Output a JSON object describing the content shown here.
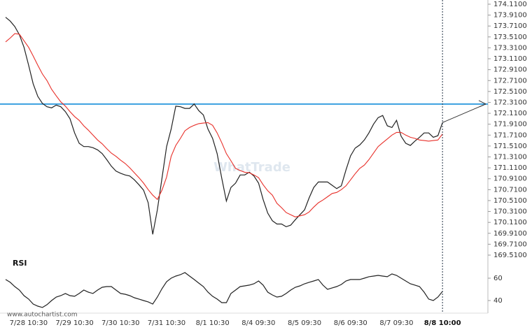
{
  "chart_data": [
    {
      "type": "line",
      "watermark": "WhatTrade",
      "categories": [
        null,
        null,
        null,
        null,
        null,
        "7/28 10:30",
        null,
        null,
        null,
        null,
        null,
        null,
        null,
        null,
        null,
        "7/29 10:30",
        null,
        null,
        null,
        null,
        null,
        null,
        null,
        null,
        null,
        "7/30 10:30",
        null,
        null,
        null,
        null,
        null,
        null,
        null,
        null,
        null,
        "7/31 10:30",
        null,
        null,
        null,
        null,
        null,
        null,
        null,
        null,
        null,
        "8/1 10:30",
        null,
        null,
        null,
        null,
        null,
        null,
        null,
        null,
        null,
        "8/4 09:30",
        null,
        null,
        null,
        null,
        null,
        null,
        null,
        null,
        null,
        "8/5 09:30",
        null,
        null,
        null,
        null,
        null,
        null,
        null,
        null,
        null,
        "8/6 09:30",
        null,
        null,
        null,
        null,
        null,
        null,
        null,
        null,
        null,
        "8/7 09:30",
        null,
        null,
        null,
        null,
        null,
        null,
        null,
        null,
        null,
        "8/8 10:00"
      ],
      "series": [
        {
          "color": "#222222",
          "values": [
            173.87,
            173.8,
            173.7,
            173.55,
            173.32,
            172.99,
            172.65,
            172.42,
            172.29,
            172.23,
            172.21,
            172.26,
            172.23,
            172.14,
            172.01,
            171.75,
            171.56,
            171.5,
            171.5,
            171.48,
            171.44,
            171.37,
            171.26,
            171.14,
            171.05,
            171.01,
            170.98,
            170.96,
            170.89,
            170.8,
            170.7,
            170.47,
            169.89,
            170.34,
            170.92,
            171.5,
            171.82,
            172.24,
            172.23,
            172.2,
            172.2,
            172.28,
            172.16,
            172.08,
            171.82,
            171.65,
            171.37,
            170.92,
            170.5,
            170.75,
            170.83,
            170.98,
            170.98,
            171.03,
            170.96,
            170.83,
            170.53,
            170.28,
            170.14,
            170.08,
            170.08,
            170.03,
            170.06,
            170.16,
            170.25,
            170.34,
            170.56,
            170.75,
            170.85,
            170.85,
            170.85,
            170.79,
            170.73,
            170.78,
            171.07,
            171.33,
            171.47,
            171.53,
            171.62,
            171.75,
            171.91,
            172.03,
            172.07,
            171.88,
            171.85,
            171.98,
            171.69,
            171.56,
            171.52,
            171.6,
            171.67,
            171.75,
            171.75,
            171.67,
            171.7,
            171.94
          ]
        },
        {
          "color": "#e8302a",
          "values": [
            173.42,
            173.49,
            173.57,
            173.56,
            173.44,
            173.32,
            173.16,
            172.99,
            172.83,
            172.71,
            172.55,
            172.43,
            172.32,
            172.24,
            172.14,
            172.05,
            171.98,
            171.88,
            171.8,
            171.71,
            171.62,
            171.55,
            171.46,
            171.38,
            171.32,
            171.25,
            171.19,
            171.11,
            171.02,
            170.93,
            170.83,
            170.71,
            170.61,
            170.53,
            170.7,
            170.94,
            171.32,
            171.52,
            171.65,
            171.79,
            171.85,
            171.89,
            171.92,
            171.93,
            171.94,
            171.89,
            171.75,
            171.57,
            171.37,
            171.24,
            171.1,
            171.06,
            171.03,
            171.02,
            170.98,
            170.93,
            170.8,
            170.69,
            170.61,
            170.46,
            170.38,
            170.29,
            170.25,
            170.21,
            170.23,
            170.25,
            170.3,
            170.39,
            170.47,
            170.52,
            170.58,
            170.64,
            170.66,
            170.71,
            170.78,
            170.89,
            171.0,
            171.1,
            171.16,
            171.26,
            171.38,
            171.5,
            171.57,
            171.64,
            171.71,
            171.76,
            171.76,
            171.71,
            171.67,
            171.65,
            171.62,
            171.61,
            171.6,
            171.61,
            171.62,
            171.73
          ]
        }
      ],
      "resistance": 172.28,
      "resistance_color": "#3aa0e0",
      "ylim": [
        169.51,
        174.11
      ],
      "yticks": [
        {
          "value": 174.11,
          "label": "174.1100"
        },
        {
          "value": 173.91,
          "label": "173.9100"
        },
        {
          "value": 173.71,
          "label": "173.7100"
        },
        {
          "value": 173.51,
          "label": "173.5100"
        },
        {
          "value": 173.31,
          "label": "173.3100"
        },
        {
          "value": 173.11,
          "label": "173.1100"
        },
        {
          "value": 172.91,
          "label": "172.9100"
        },
        {
          "value": 172.71,
          "label": "172.7100"
        },
        {
          "value": 172.51,
          "label": "172.5100"
        },
        {
          "value": 172.31,
          "label": "172.3100"
        },
        {
          "value": 172.11,
          "label": "172.1100"
        },
        {
          "value": 171.91,
          "label": "171.9100"
        },
        {
          "value": 171.71,
          "label": "171.7100"
        },
        {
          "value": 171.51,
          "label": "171.5100"
        },
        {
          "value": 171.31,
          "label": "171.3100"
        },
        {
          "value": 171.11,
          "label": "171.1100"
        },
        {
          "value": 170.91,
          "label": "170.9100"
        },
        {
          "value": 170.71,
          "label": "170.7100"
        },
        {
          "value": 170.51,
          "label": "170.5100"
        },
        {
          "value": 170.31,
          "label": "170.3100"
        },
        {
          "value": 170.11,
          "label": "170.1100"
        },
        {
          "value": 169.91,
          "label": "169.9100"
        },
        {
          "value": 169.71,
          "label": "169.7100"
        },
        {
          "value": 169.51,
          "label": "169.5100"
        }
      ]
    },
    {
      "type": "line",
      "title": "RSI",
      "source": "www.autochartist.com",
      "series": [
        {
          "color": "#222222",
          "values": [
            58.8,
            56.3,
            52.5,
            49.4,
            44.4,
            41.3,
            36.9,
            35.0,
            33.8,
            36.3,
            40.0,
            43.1,
            44.4,
            46.3,
            44.4,
            43.8,
            46.3,
            49.4,
            47.5,
            46.3,
            49.4,
            51.9,
            52.5,
            52.5,
            49.4,
            46.3,
            45.6,
            44.4,
            42.5,
            41.3,
            40.0,
            38.8,
            36.9,
            43.1,
            50.6,
            56.9,
            60.0,
            61.9,
            63.1,
            65.0,
            61.9,
            58.8,
            55.6,
            52.5,
            47.5,
            43.8,
            41.3,
            38.1,
            38.1,
            46.3,
            49.4,
            52.5,
            53.1,
            53.8,
            55.0,
            57.5,
            53.8,
            47.5,
            45.0,
            43.1,
            43.8,
            46.3,
            49.4,
            51.9,
            53.1,
            55.0,
            56.3,
            57.5,
            58.8,
            53.8,
            50.0,
            51.3,
            52.5,
            54.4,
            57.5,
            58.8,
            58.8,
            58.8,
            60.0,
            61.3,
            61.9,
            62.5,
            61.9,
            61.3,
            63.8,
            62.5,
            60.0,
            57.5,
            55.0,
            53.8,
            52.5,
            47.5,
            41.3,
            40.0,
            43.1,
            48.1
          ]
        }
      ],
      "ylim": [
        30,
        78
      ],
      "yticks": [
        40,
        60
      ]
    }
  ]
}
